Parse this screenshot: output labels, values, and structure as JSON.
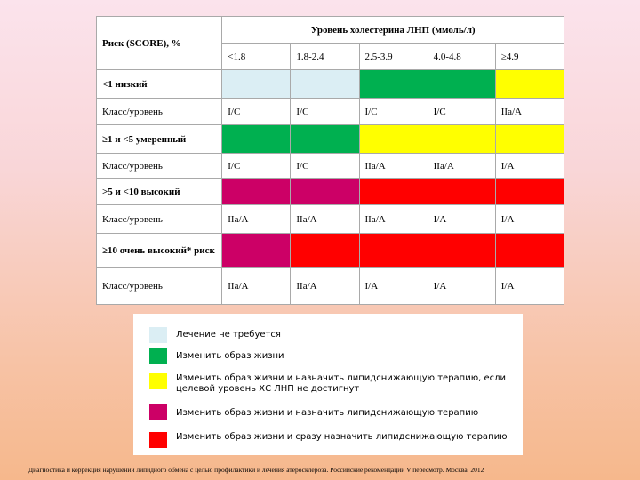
{
  "table": {
    "risk_header": "Риск (SCORE), %",
    "ldl_header": "Уровень холестерина ЛНП (ммоль/л)",
    "ldl_levels": [
      "<1.8",
      "1.8-2.4",
      "2.5-3.9",
      "4.0-4.8",
      "≥4.9"
    ],
    "rows": [
      {
        "label": "<1 низкий",
        "class_label": "Класс/уровень",
        "classes": [
          "I/C",
          "I/C",
          "I/C",
          "I/C",
          "IIa/A"
        ]
      },
      {
        "label": "≥1 и <5 умеренный",
        "class_label": "Класс/уровень",
        "classes": [
          "I/C",
          "I/C",
          "IIa/A",
          "IIa/A",
          "I/A"
        ]
      },
      {
        "label": ">5 и <10 высокий",
        "class_label": "Класс/уровень",
        "classes": [
          "IIa/A",
          "IIa/A",
          "IIa/A",
          "I/A",
          "I/A"
        ]
      },
      {
        "label": "≥10 очень высокий* риск",
        "class_label": "Класс/уровень",
        "classes": [
          "IIa/A",
          "IIa/A",
          "I/A",
          "I/A",
          "I/A"
        ]
      }
    ]
  },
  "legend": [
    "Лечение не требуется",
    "Изменить образ жизни",
    "Изменить образ жизни и назначить липидснижающую терапию, если целевой уровень ХС ЛНП не достигнут",
    "Изменить образ жизни и назначить липидснижающую терапию",
    "Изменить образ жизни и сразу назначить липидснижающую терапию"
  ],
  "footer": "Диагностика и коррекция нарушений липидного обмена с целью профилактики и лечения атеросклероза. Российские рекомендации V пересмотр. Москва. 2012"
}
